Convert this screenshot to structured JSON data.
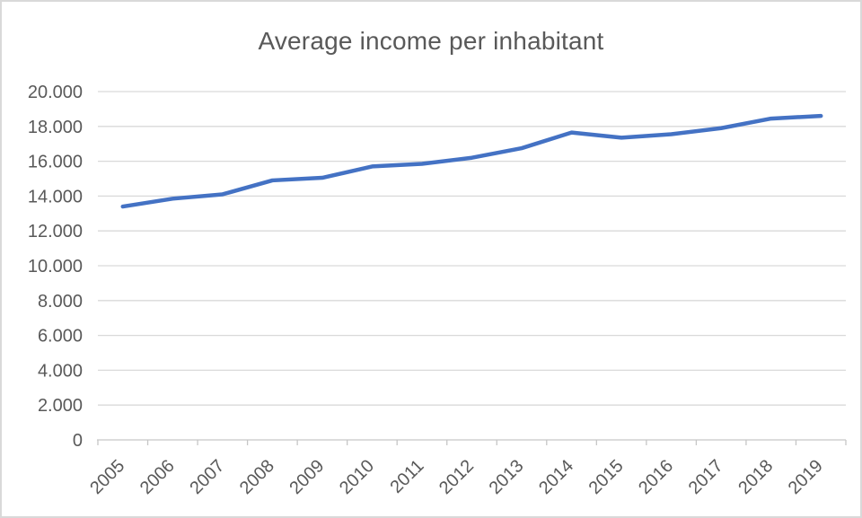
{
  "page": {
    "background": "#ffffff",
    "border_color": "#d9d9d9"
  },
  "chart_data": {
    "type": "line",
    "title": "Average income per inhabitant",
    "categories": [
      "2005",
      "2006",
      "2007",
      "2008",
      "2009",
      "2010",
      "2011",
      "2012",
      "2013",
      "2014",
      "2015",
      "2016",
      "2017",
      "2018",
      "2019"
    ],
    "values": [
      13400,
      13850,
      14100,
      14900,
      15050,
      15700,
      15850,
      16200,
      16750,
      17650,
      17350,
      17550,
      17900,
      18450,
      18600
    ],
    "xlabel": "",
    "ylabel": "",
    "ylim": [
      0,
      20000
    ],
    "ytick_step": 2000,
    "ytick_labels": [
      "0",
      "2.000",
      "4.000",
      "6.000",
      "8.000",
      "10.000",
      "12.000",
      "14.000",
      "16.000",
      "18.000",
      "20.000"
    ],
    "x_label_rotation": -45,
    "grid": true,
    "legend": false,
    "line_color": "#4472c4",
    "text_color": "#595959",
    "gridline_color": "#d9d9d9",
    "axis_color": "#c6c6c6"
  }
}
